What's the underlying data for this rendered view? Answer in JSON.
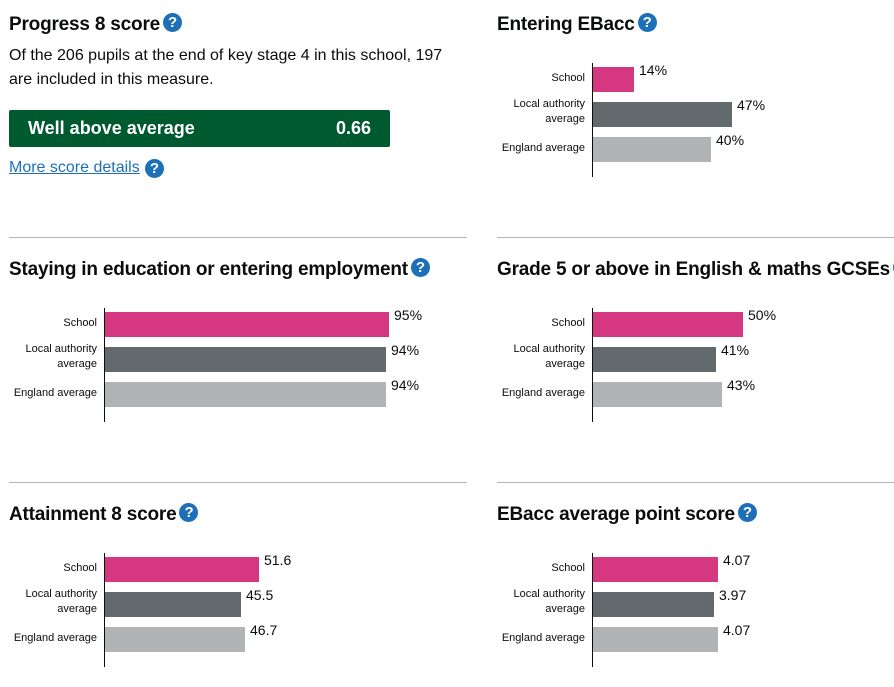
{
  "help_glyph": "?",
  "progress8": {
    "title": "Progress 8 score",
    "description": "Of the 206 pupils at the end of key stage 4 in this school, 197 are included in this measure.",
    "band_label": "Well above average",
    "band_value": "0.66",
    "more_link": "More score details",
    "colors": {
      "band": "#005a30",
      "link": "#1d70b8"
    }
  },
  "bar_labels": {
    "school": "School",
    "la_line1": "Local authority",
    "la_line2": "average",
    "england": "England average"
  },
  "colors": {
    "school": "#d53880",
    "la": "#626a6e",
    "england": "#b1b4b6",
    "help": "#1d70b8"
  },
  "charts": [
    {
      "title": "Entering EBacc",
      "unit": "percent",
      "values": {
        "school": 14,
        "la": 47,
        "england": 40
      },
      "labels": {
        "school": "14%",
        "la": "47%",
        "england": "40%"
      }
    },
    {
      "title": "Staying in education or entering employment",
      "unit": "percent",
      "values": {
        "school": 95,
        "la": 94,
        "england": 94
      },
      "labels": {
        "school": "95%",
        "la": "94%",
        "england": "94%"
      }
    },
    {
      "title": "Grade 5 or above in English & maths GCSEs",
      "unit": "percent",
      "values": {
        "school": 50,
        "la": 41,
        "england": 43
      },
      "labels": {
        "school": "50%",
        "la": "41%",
        "england": "43%"
      }
    },
    {
      "title": "Attainment 8 score",
      "unit": "points",
      "values": {
        "school": 51.6,
        "la": 45.5,
        "england": 46.7
      },
      "labels": {
        "school": "51.6",
        "la": "45.5",
        "england": "46.7"
      }
    },
    {
      "title": "EBacc average point score",
      "unit": "points",
      "values": {
        "school": 4.07,
        "la": 3.97,
        "england": 4.07
      },
      "labels": {
        "school": "4.07",
        "la": "3.97",
        "england": "4.07"
      }
    }
  ]
}
